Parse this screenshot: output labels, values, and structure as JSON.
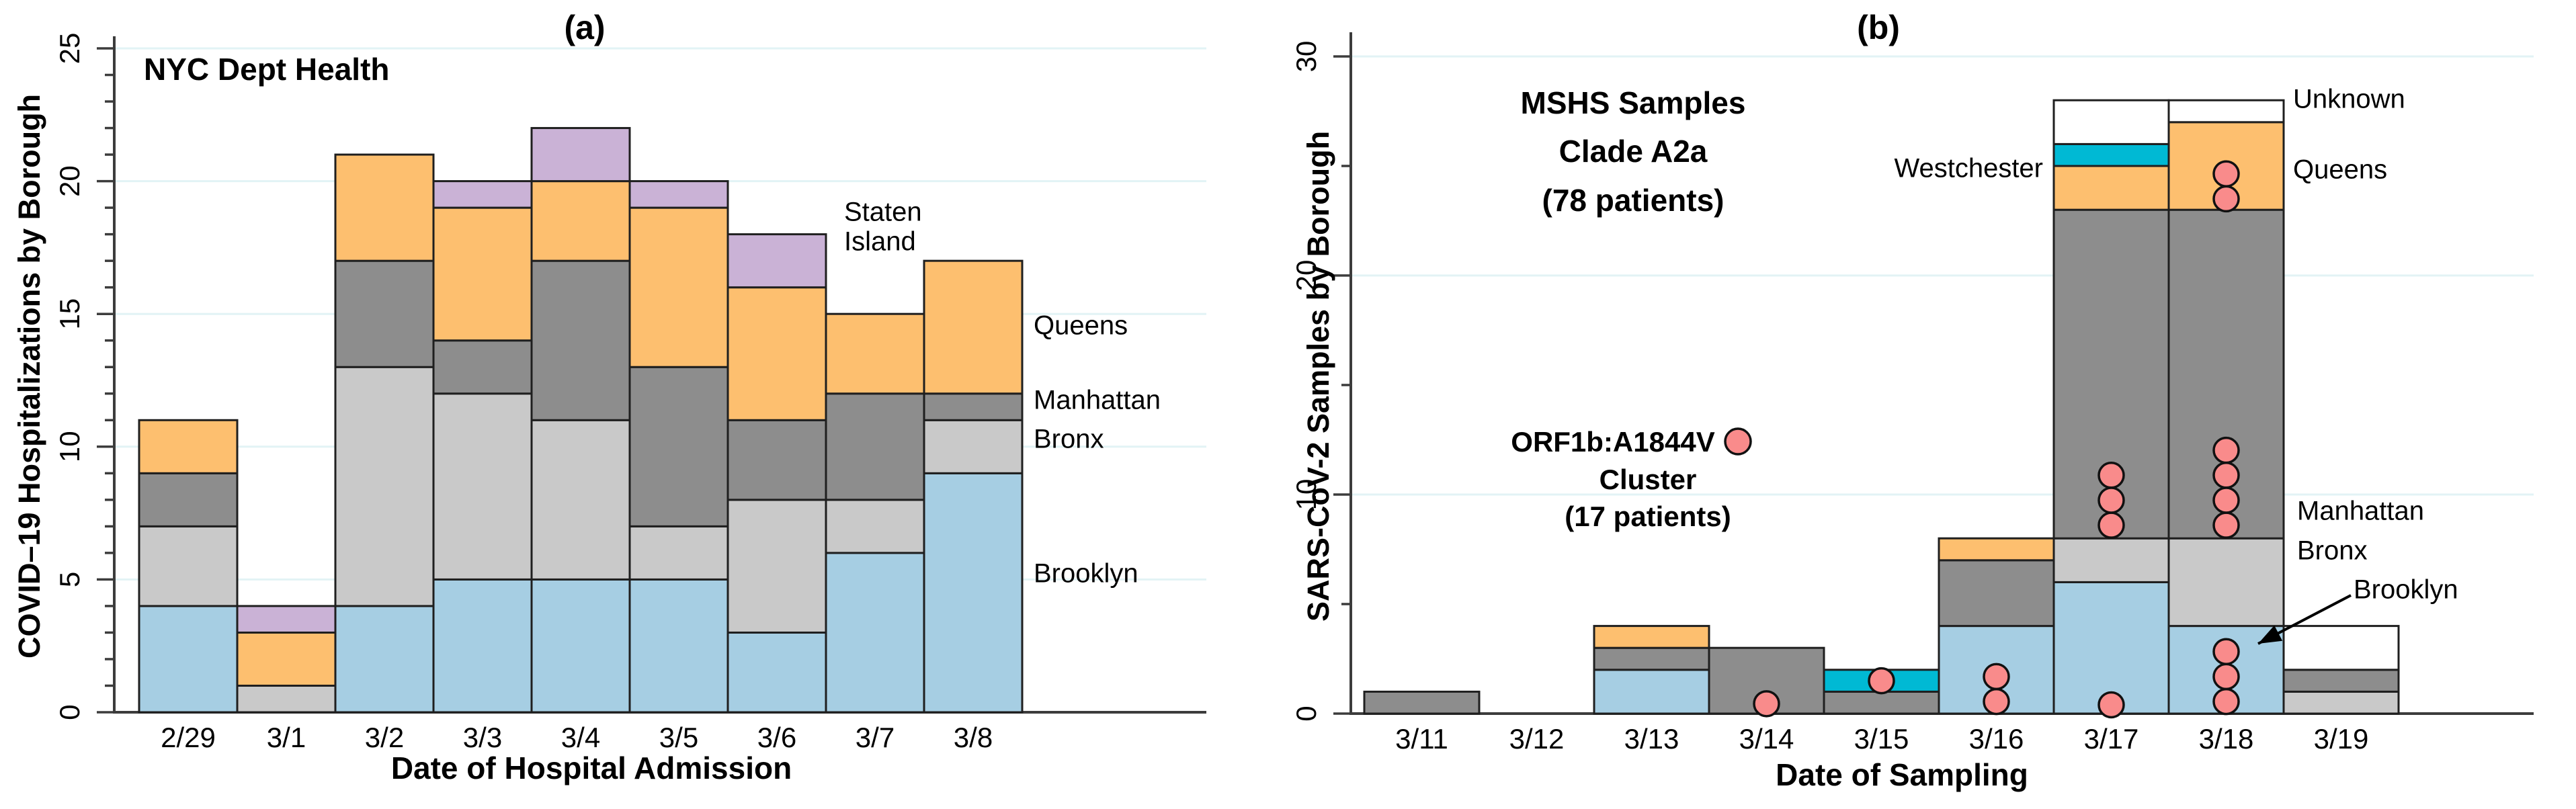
{
  "colors": {
    "background": "#ffffff",
    "axis": "#3c3c3c",
    "grid": "#e2f3f5",
    "bar_border": "#1f1f1f",
    "cluster_dot_fill": "#f98b8b",
    "cluster_dot_border": "#111111",
    "brooklyn": "#a6cee3",
    "bronx": "#c9c9c9",
    "manhattan": "#8d8d8d",
    "queens": "#fdbf6f",
    "staten_island": "#cab2d6",
    "westchester": "#00b9d4",
    "unknown": "#ffffff"
  },
  "panels": {
    "a": {
      "panel_label": "(a)",
      "title": "NYC Dept Health",
      "xlabel": "Date of Hospital Admission",
      "ylabel": "COVID–19 Hospitalizations by Borough"
    },
    "b": {
      "panel_label": "(b)",
      "title_line1": "MSHS Samples",
      "title_line2": "Clade A2a",
      "title_line3": "(78 patients)",
      "xlabel": "Date of Sampling",
      "ylabel": "SARS-CoV-2 Samples by Borough",
      "annotation_line1": "ORF1b:A1844V",
      "annotation_line2": "Cluster",
      "annotation_line3": "(17 patients)"
    }
  },
  "chart_data": [
    {
      "id": "a",
      "type": "bar",
      "subtype": "stacked",
      "title": "NYC Dept Health",
      "xlabel": "Date of Hospital Admission",
      "ylabel": "COVID–19 Hospitalizations by Borough",
      "categories": [
        "2/29",
        "3/1",
        "3/2",
        "3/3",
        "3/4",
        "3/5",
        "3/6",
        "3/7",
        "3/8"
      ],
      "series": [
        {
          "name": "Brooklyn",
          "color": "#a6cee3",
          "values": [
            4,
            0,
            4,
            5,
            5,
            5,
            3,
            6,
            9
          ]
        },
        {
          "name": "Bronx",
          "color": "#c9c9c9",
          "values": [
            3,
            1,
            9,
            7,
            6,
            2,
            5,
            2,
            2
          ]
        },
        {
          "name": "Manhattan",
          "color": "#8d8d8d",
          "values": [
            2,
            0,
            4,
            2,
            6,
            6,
            3,
            4,
            1
          ]
        },
        {
          "name": "Queens",
          "color": "#fdbf6f",
          "values": [
            2,
            2,
            4,
            5,
            3,
            6,
            5,
            3,
            5
          ]
        },
        {
          "name": "Staten Island",
          "color": "#cab2d6",
          "values": [
            0,
            1,
            0,
            1,
            2,
            1,
            2,
            0,
            0
          ]
        }
      ],
      "totals": [
        11,
        4,
        21,
        20,
        22,
        20,
        18,
        15,
        17
      ],
      "ylim": [
        0,
        25
      ],
      "ytick_labels": [
        "0",
        "5",
        "10",
        "15",
        "20",
        "25"
      ],
      "ytick_major_step": 5,
      "ytick_minor_step": 1,
      "gridlines": [
        5,
        10,
        15,
        20,
        25
      ],
      "grid": true,
      "legend_position": "right-inline",
      "right_labels": [
        {
          "text": "Staten",
          "x": 1256,
          "y": 318,
          "anchor": "start"
        },
        {
          "text": "Island",
          "x": 1256,
          "y": 362,
          "anchor": "start"
        },
        {
          "text": "Queens",
          "x": 1538,
          "y": 487,
          "anchor": "start"
        },
        {
          "text": "Manhattan",
          "x": 1538,
          "y": 598,
          "anchor": "start"
        },
        {
          "text": "Bronx",
          "x": 1538,
          "y": 656,
          "anchor": "start"
        },
        {
          "text": "Brooklyn",
          "x": 1538,
          "y": 856,
          "anchor": "start"
        }
      ]
    },
    {
      "id": "b",
      "type": "bar",
      "subtype": "stacked",
      "title": "MSHS Samples Clade A2a (78 patients)",
      "xlabel": "Date of Sampling",
      "ylabel": "SARS-CoV-2 Samples by Borough",
      "categories": [
        "3/11",
        "3/12",
        "3/13",
        "3/14",
        "3/15",
        "3/16",
        "3/17",
        "3/18",
        "3/19"
      ],
      "series": [
        {
          "name": "Brooklyn",
          "color": "#a6cee3",
          "values": [
            0,
            0,
            2,
            0,
            0,
            4,
            6,
            4,
            0
          ]
        },
        {
          "name": "Bronx",
          "color": "#c9c9c9",
          "values": [
            0,
            0,
            0,
            0,
            0,
            0,
            2,
            4,
            1
          ]
        },
        {
          "name": "Manhattan",
          "color": "#8d8d8d",
          "values": [
            1,
            0,
            1,
            3,
            1,
            3,
            15,
            15,
            1
          ]
        },
        {
          "name": "Queens",
          "color": "#fdbf6f",
          "values": [
            0,
            0,
            1,
            0,
            0,
            1,
            2,
            4,
            0
          ]
        },
        {
          "name": "Westchester",
          "color": "#00b9d4",
          "values": [
            0,
            0,
            0,
            0,
            1,
            0,
            1,
            0,
            0
          ]
        },
        {
          "name": "Unknown",
          "color": "#ffffff",
          "values": [
            0,
            0,
            0,
            0,
            0,
            0,
            2,
            1,
            2
          ]
        }
      ],
      "totals": [
        1,
        0,
        4,
        3,
        2,
        8,
        28,
        28,
        4
      ],
      "ylim": [
        0,
        30
      ],
      "ytick_labels": [
        "0",
        "10",
        "20",
        "30"
      ],
      "ytick_major_step": 10,
      "ytick_minor_step": 5,
      "gridlines": [
        10,
        20,
        30
      ],
      "grid": true,
      "cluster_dots": [
        {
          "date": "3/14",
          "values": [
            0.45
          ]
        },
        {
          "date": "3/15",
          "values": [
            1.5
          ]
        },
        {
          "date": "3/16",
          "values": [
            0.55,
            1.69
          ]
        },
        {
          "date": "3/17",
          "values": [
            0.4,
            8.6,
            9.74,
            10.88
          ]
        },
        {
          "date": "3/18",
          "values": [
            0.55,
            1.69,
            2.83,
            8.6,
            9.74,
            10.88,
            12.02,
            23.5,
            24.64
          ]
        }
      ],
      "cluster_total": 17,
      "annotation": {
        "text": "ORF1b:A1844V Cluster (17 patients)",
        "dot_x": 2586,
        "dot_y": 657
      },
      "annotation_arrow": {
        "x1": 3498,
        "y1": 886,
        "x2": 3360,
        "y2": 958
      },
      "right_labels": [
        {
          "text": "Westchester",
          "x": 3040,
          "y": 253,
          "anchor": "end"
        },
        {
          "text": "Unknown",
          "x": 3412,
          "y": 150,
          "anchor": "start"
        },
        {
          "text": "Queens",
          "x": 3412,
          "y": 255,
          "anchor": "start"
        },
        {
          "text": "Manhattan",
          "x": 3418,
          "y": 763,
          "anchor": "start"
        },
        {
          "text": "Bronx",
          "x": 3418,
          "y": 822,
          "anchor": "start"
        },
        {
          "text": "Brooklyn",
          "x": 3502,
          "y": 880,
          "anchor": "start"
        }
      ]
    }
  ]
}
